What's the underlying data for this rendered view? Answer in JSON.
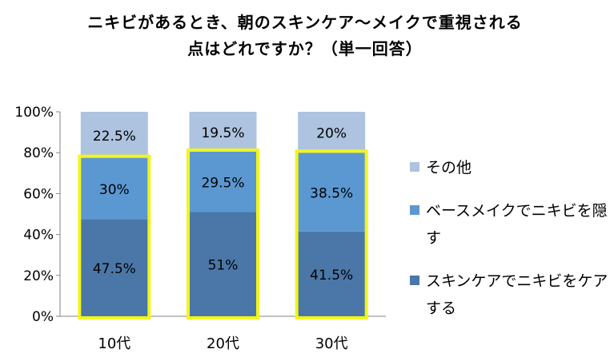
{
  "chart_data": {
    "type": "bar",
    "stacked": true,
    "percent_stacked": true,
    "title": "ニキビがあるとき、朝のスキンケア〜メイクで重視される",
    "title_line_2": "点はどれですか？（単一回答）",
    "categories": [
      "10代",
      "20代",
      "30代"
    ],
    "series": [
      {
        "name": "スキンケアでニキビをケアする",
        "values": [
          47.5,
          51,
          41.5
        ],
        "labels": [
          "47.5%",
          "51%",
          "41.5%"
        ],
        "color": "#4a77a8"
      },
      {
        "name": "ベースメイクでニキビを隠す",
        "values": [
          30,
          29.5,
          38.5
        ],
        "labels": [
          "30%",
          "29.5%",
          "38.5%"
        ],
        "color": "#5b98d2"
      },
      {
        "name": "その他",
        "values": [
          22.5,
          19.5,
          20
        ],
        "labels": [
          "22.5%",
          "19.5%",
          "20%"
        ],
        "color": "#adc3df"
      }
    ],
    "ylim": [
      0,
      100
    ],
    "yticks": [
      "0%",
      "20%",
      "40%",
      "60%",
      "80%",
      "100%"
    ],
    "xlabel": "",
    "ylabel": "",
    "grid": false,
    "legend_position": "right",
    "highlight_color": "#f2f51c"
  }
}
